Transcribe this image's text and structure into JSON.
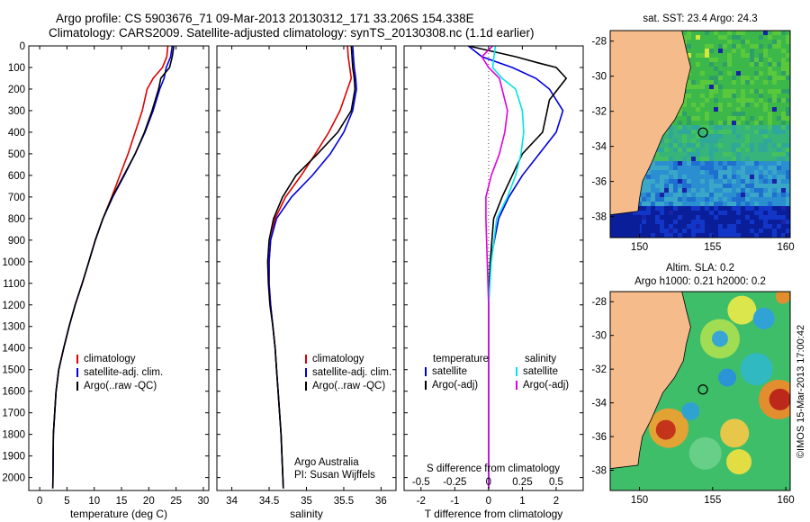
{
  "header": {
    "line1": "Argo profile: CS 5903676_71 09-Mar-2013 20130312_171 33.206S 154.338E",
    "line2": "Climatology: CARS2009. Satellite-adjusted climatology: synTS_20130308.nc (1.1d earlier)"
  },
  "colors": {
    "climatology": "#dd0000",
    "satellite": "#0000dd",
    "argo": "#000000",
    "salinity_satellite": "#00e5e5",
    "salinity_argo": "#e000e0",
    "land": "#f5bb8a"
  },
  "chart_data": [
    {
      "type": "line",
      "xlabel": "temperature (deg C)",
      "xlim": [
        -2,
        31
      ],
      "xticks": [
        0,
        5,
        10,
        15,
        20,
        25,
        30
      ],
      "ylim": [
        0,
        2060
      ],
      "yticks": [
        0,
        100,
        200,
        300,
        400,
        500,
        600,
        700,
        800,
        900,
        1000,
        1100,
        1200,
        1300,
        1400,
        1500,
        1600,
        1700,
        1800,
        1900,
        2000
      ],
      "legend": [
        "climatology",
        "satellite-adj. clim.",
        "Argo(..raw -QC)"
      ],
      "legend_position": "lower-left",
      "series": [
        {
          "name": "climatology",
          "color": "#dd0000",
          "x": [
            23.5,
            23.3,
            22.5,
            20.8,
            19.7,
            18.8,
            17.5,
            16.2,
            14.7,
            13.2,
            11.6,
            10.2,
            9.0,
            7.8,
            6.5,
            5.4,
            4.4,
            3.5,
            3.0,
            2.5,
            2.4
          ],
          "y": [
            0,
            50,
            100,
            150,
            200,
            300,
            400,
            500,
            600,
            700,
            800,
            900,
            1000,
            1100,
            1200,
            1300,
            1400,
            1500,
            1600,
            1800,
            2050
          ]
        },
        {
          "name": "satellite-adj. clim.",
          "color": "#0000dd",
          "x": [
            24.3,
            24.0,
            23.2,
            22.8,
            22.0,
            20.8,
            19.3,
            17.5,
            15.5,
            13.4,
            11.6,
            10.2,
            9.0,
            7.8,
            6.5,
            5.4,
            4.4,
            3.5,
            3.0,
            2.5,
            2.4
          ],
          "y": [
            0,
            50,
            100,
            150,
            200,
            300,
            400,
            500,
            600,
            700,
            800,
            900,
            1000,
            1100,
            1200,
            1300,
            1400,
            1500,
            1600,
            1800,
            2050
          ]
        },
        {
          "name": "Argo(..raw -QC)",
          "color": "#000000",
          "x": [
            24.6,
            24.3,
            23.8,
            22.2,
            21.8,
            20.6,
            19.2,
            17.5,
            15.4,
            13.3,
            11.6,
            10.2,
            9.0,
            7.8,
            6.5,
            5.4,
            4.4,
            3.5,
            3.0,
            2.5,
            2.4
          ],
          "y": [
            0,
            50,
            100,
            150,
            200,
            300,
            400,
            500,
            600,
            700,
            800,
            900,
            1000,
            1100,
            1200,
            1300,
            1400,
            1500,
            1600,
            1800,
            2050
          ]
        }
      ]
    },
    {
      "type": "line",
      "xlabel": "salinity",
      "xlim": [
        33.8,
        36.2
      ],
      "xticks": [
        34,
        34.5,
        35,
        35.5,
        36
      ],
      "ylim": [
        0,
        2060
      ],
      "legend": [
        "climatology",
        "satellite-adj. clim.",
        "Argo(..raw -QC)"
      ],
      "legend_position": "lower-right",
      "annotations": [
        "Argo Australia",
        "PI: Susan Wijffels"
      ],
      "series": [
        {
          "name": "climatology",
          "color": "#dd0000",
          "x": [
            35.55,
            35.56,
            35.58,
            35.6,
            35.55,
            35.45,
            35.3,
            35.12,
            34.93,
            34.72,
            34.58,
            34.52,
            34.5,
            34.5,
            34.52,
            34.55,
            34.58,
            34.6,
            34.62,
            34.66,
            34.69
          ],
          "y": [
            0,
            50,
            100,
            150,
            200,
            300,
            400,
            500,
            600,
            700,
            800,
            900,
            1000,
            1100,
            1200,
            1300,
            1400,
            1500,
            1600,
            1800,
            2050
          ]
        },
        {
          "name": "satellite-adj. clim.",
          "color": "#0000dd",
          "x": [
            35.62,
            35.63,
            35.64,
            35.66,
            35.67,
            35.62,
            35.5,
            35.32,
            35.08,
            34.8,
            34.6,
            34.52,
            34.5,
            34.5,
            34.52,
            34.55,
            34.58,
            34.6,
            34.62,
            34.66,
            34.69
          ],
          "y": [
            0,
            50,
            100,
            150,
            200,
            300,
            400,
            500,
            600,
            700,
            800,
            900,
            1000,
            1100,
            1200,
            1300,
            1400,
            1500,
            1600,
            1800,
            2050
          ]
        },
        {
          "name": "Argo(..raw -QC)",
          "color": "#000000",
          "x": [
            35.6,
            35.61,
            35.62,
            35.64,
            35.65,
            35.6,
            35.42,
            35.15,
            34.86,
            34.68,
            34.56,
            34.5,
            34.48,
            34.49,
            34.51,
            34.55,
            34.58,
            34.6,
            34.62,
            34.66,
            34.69
          ],
          "y": [
            0,
            50,
            100,
            150,
            200,
            300,
            400,
            500,
            600,
            700,
            800,
            900,
            1000,
            1100,
            1200,
            1300,
            1400,
            1500,
            1600,
            1800,
            2050
          ]
        }
      ]
    },
    {
      "type": "line",
      "xlabel": "T difference from climatology",
      "xlabel_top": "S difference from climatology",
      "xlim": [
        -2.5,
        2.8
      ],
      "xticks": [
        -2,
        -1,
        0,
        1,
        2
      ],
      "xticks_top": [
        -0.5,
        -0.25,
        0,
        0.25,
        0.5
      ],
      "ylim": [
        0,
        2060
      ],
      "zero_line": "dotted",
      "legend": {
        "temperature": [
          "satellite",
          "Argo(-adj)"
        ],
        "salinity": [
          "satellite",
          "Argo(-adj)"
        ]
      },
      "legend_headings": [
        "temperature",
        "salinity"
      ],
      "legend_position": "lower-center",
      "series": [
        {
          "name": "satellite",
          "quantity": "temperature",
          "color": "#0000dd",
          "x": [
            -0.6,
            -0.2,
            0.7,
            1.4,
            1.8,
            2.2,
            2.0,
            1.5,
            1.0,
            0.6,
            0.3,
            0.05,
            0.0,
            0.0,
            0.0
          ],
          "y": [
            0,
            50,
            100,
            150,
            200,
            300,
            400,
            500,
            600,
            700,
            800,
            1000,
            1200,
            1500,
            2050
          ]
        },
        {
          "name": "Argo(-adj)",
          "quantity": "temperature",
          "color": "#000000",
          "x": [
            -0.6,
            0.8,
            1.5,
            2.0,
            2.3,
            1.8,
            1.6,
            1.0,
            0.7,
            0.4,
            0.15,
            0.05,
            0.0,
            0.0,
            0.0
          ],
          "y": [
            0,
            50,
            80,
            100,
            150,
            250,
            400,
            500,
            600,
            700,
            800,
            1000,
            1200,
            1500,
            2050
          ]
        },
        {
          "name": "satellite",
          "quantity": "salinity",
          "color": "#00e5e5",
          "x": [
            0.05,
            0.04,
            0.03,
            0.1,
            0.2,
            0.25,
            0.26,
            0.24,
            0.2,
            0.14,
            0.06,
            0.02,
            0.0,
            0.0,
            0.0
          ],
          "y": [
            0,
            50,
            100,
            150,
            200,
            300,
            400,
            500,
            600,
            700,
            800,
            1000,
            1200,
            1500,
            2050
          ]
        },
        {
          "name": "Argo(-adj)",
          "quantity": "salinity",
          "color": "#e000e0",
          "x": [
            0.03,
            -0.05,
            0.0,
            0.08,
            0.1,
            0.14,
            0.12,
            0.08,
            0.02,
            -0.02,
            -0.02,
            -0.01,
            0.0,
            0.0,
            0.0
          ],
          "y": [
            0,
            50,
            100,
            150,
            200,
            300,
            400,
            500,
            600,
            700,
            800,
            1000,
            1200,
            1500,
            2050
          ]
        }
      ]
    },
    {
      "type": "heatmap",
      "title": "sat. SST: 23.4 Argo: 24.3",
      "xlim": [
        148,
        160.3
      ],
      "ylim": [
        -39.2,
        -27.4
      ],
      "xticks": [
        150,
        155,
        160
      ],
      "yticks": [
        -38,
        -36,
        -34,
        -32,
        -30,
        -28
      ],
      "float_position": {
        "lon": 154.338,
        "lat": -33.206
      }
    },
    {
      "type": "heatmap",
      "title": "Altim. SLA: 0.2",
      "subtitle": "Argo h1000: 0.21 h2000: 0.2",
      "xlim": [
        148,
        160.3
      ],
      "ylim": [
        -39.2,
        -27.4
      ],
      "xticks": [
        150,
        155,
        160
      ],
      "yticks": [
        -38,
        -36,
        -34,
        -32,
        -30,
        -28
      ],
      "float_position": {
        "lon": 154.338,
        "lat": -33.206
      }
    }
  ],
  "side_label": "©IMOS 15-Mar-2013 17:00:42"
}
